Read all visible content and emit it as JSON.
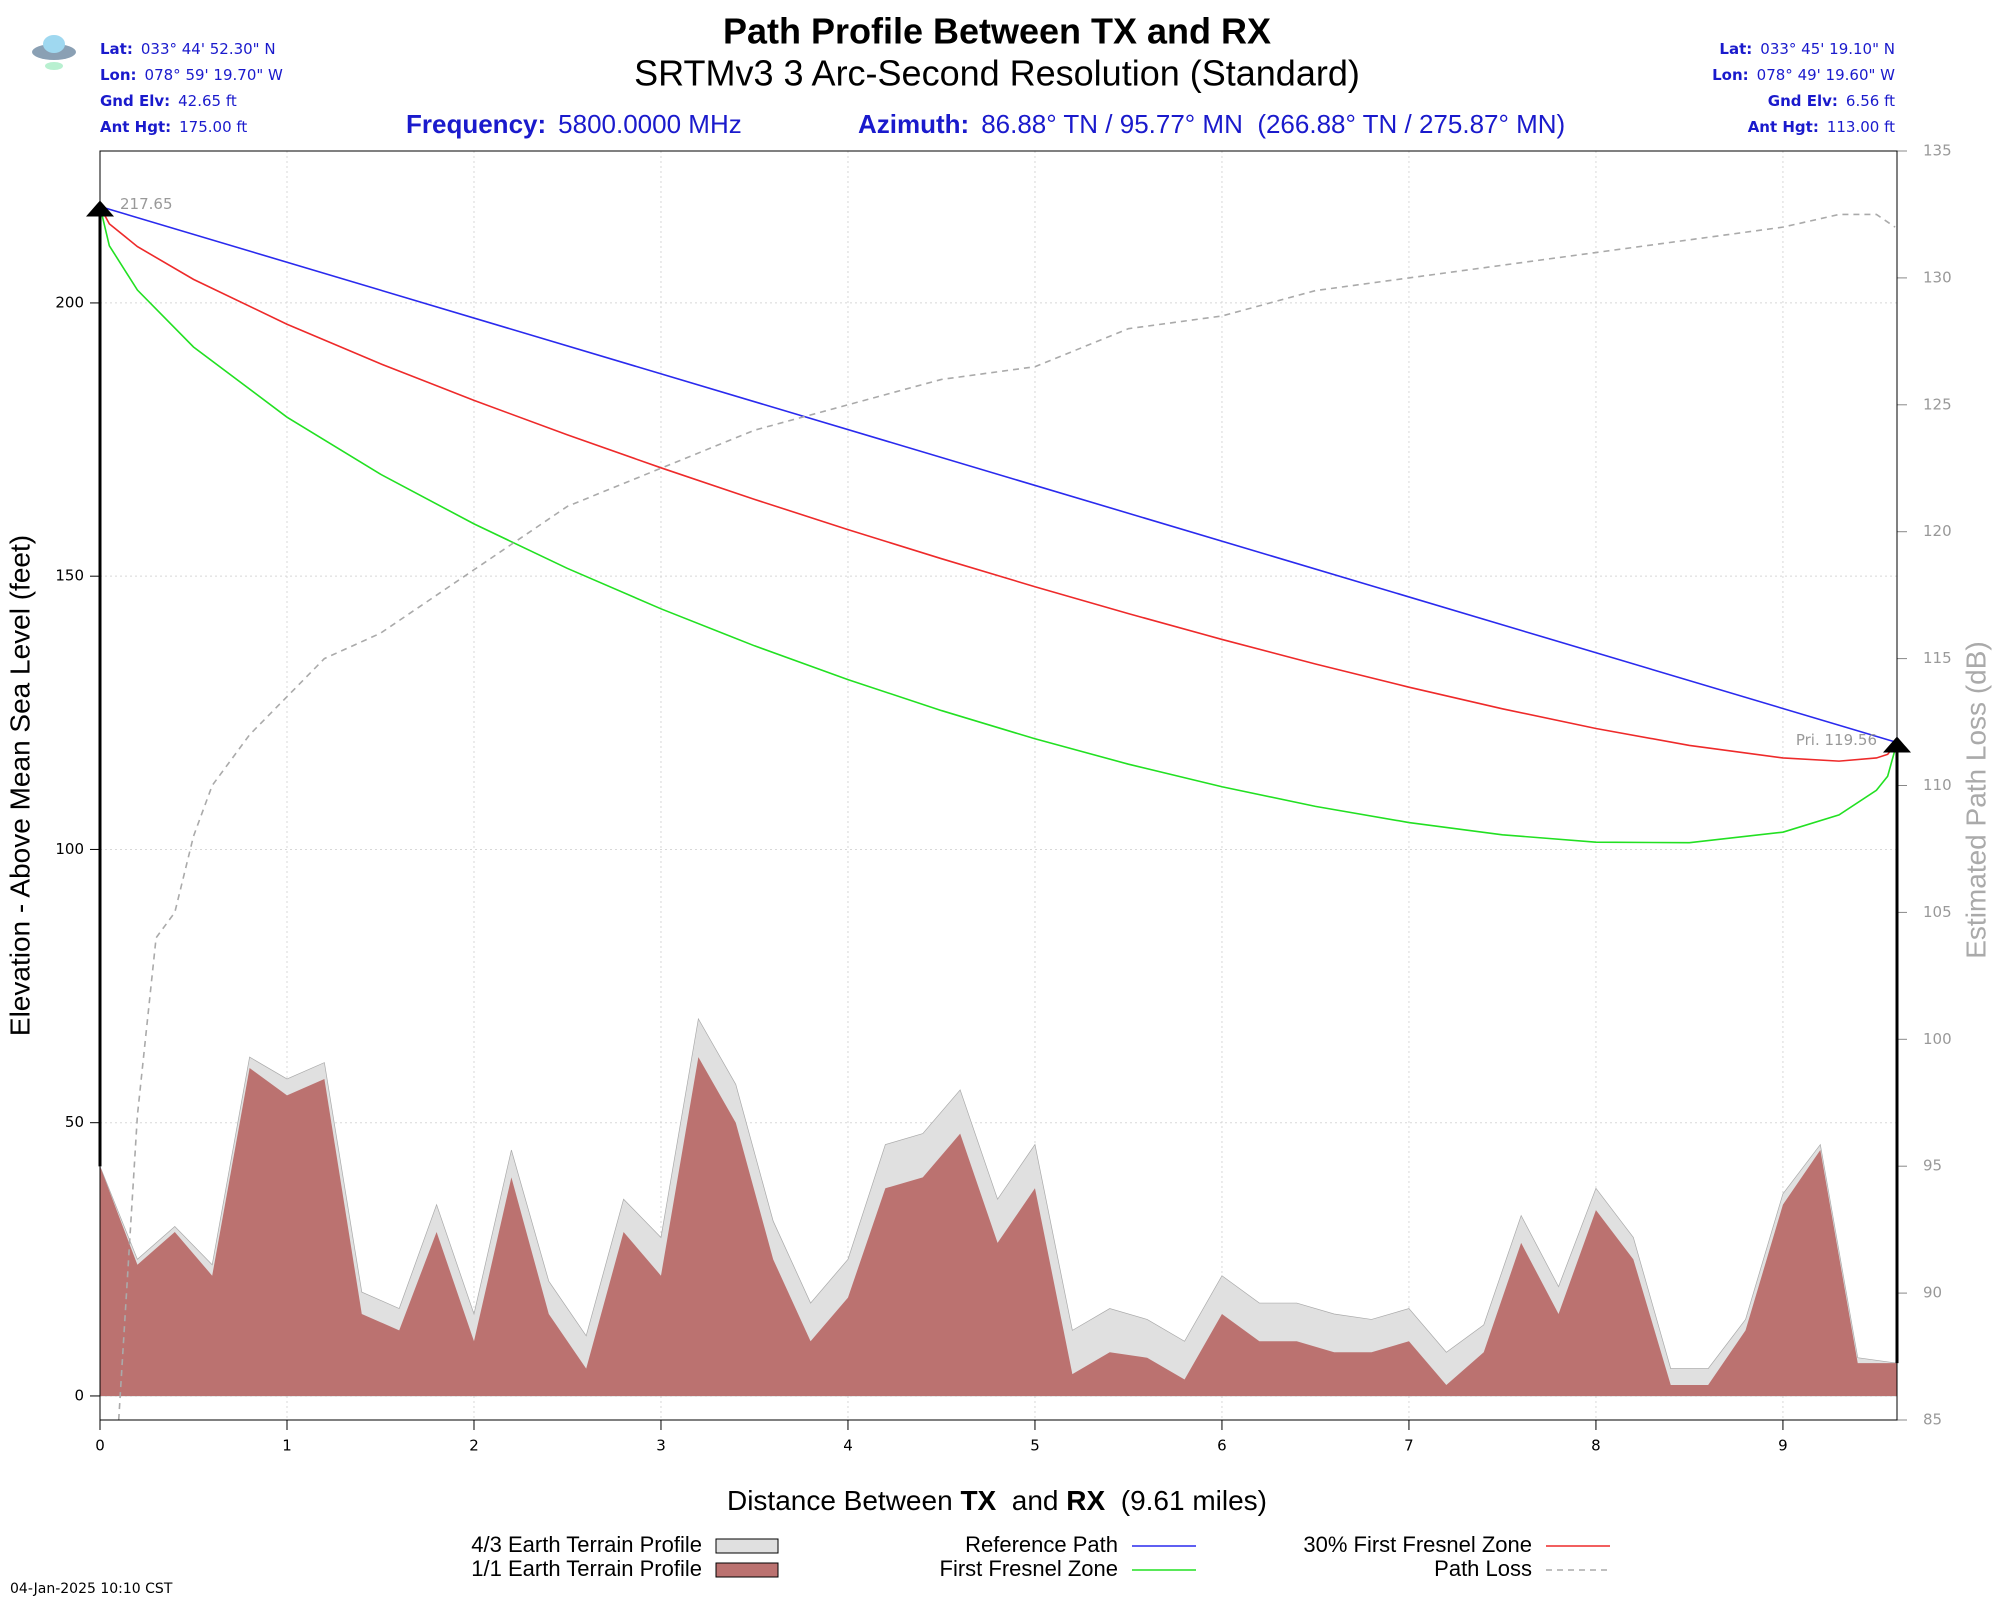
{
  "chart_data": {
    "type": "line",
    "title": "Path Profile Between TX and RX",
    "subtitle": "SRTMv3 3 Arc-Second Resolution (Standard)",
    "tx": [
      {
        "label": "Lat:",
        "value": "033° 44' 52.30\" N"
      },
      {
        "label": "Lon:",
        "value": "078° 59' 19.70\" W"
      },
      {
        "label": "Gnd Elv:",
        "value": "42.65 ft"
      },
      {
        "label": "Ant Hgt:",
        "value": "175.00 ft"
      }
    ],
    "rx": [
      {
        "label": "Lat:",
        "value": "033° 45' 19.10\" N"
      },
      {
        "label": "Lon:",
        "value": "078° 49' 19.60\" W"
      },
      {
        "label": "Gnd Elv:",
        "value": "6.56 ft"
      },
      {
        "label": "Ant Hgt:",
        "value": "113.00 ft"
      }
    ],
    "frequency": {
      "label": "Frequency:",
      "value": "5800.0000 MHz"
    },
    "azimuth": {
      "label": "Azimuth:",
      "value": "86.88° TN / 95.77° MN  (266.88° TN / 275.87° MN)"
    },
    "xlabel": [
      "Distance Between ",
      "TX",
      "  and ",
      "RX",
      "  (9.61 miles)"
    ],
    "ylabel": "Elevation - Above Mean Sea Level (feet)",
    "y2label": "Estimated Path Loss (dB)",
    "timestamp": "04-Jan-2025 10:10 CST",
    "xlim": [
      0,
      9.61
    ],
    "xticks": [
      0,
      1,
      2,
      3,
      4,
      5,
      6,
      7,
      8,
      9
    ],
    "ylim": [
      -4.4,
      227.8
    ],
    "yticks": [
      0,
      50,
      100,
      150,
      200
    ],
    "y2lim": [
      85,
      135
    ],
    "y2ticks": [
      85,
      90,
      95,
      100,
      105,
      110,
      115,
      120,
      125,
      130,
      135
    ],
    "grid": true,
    "x": [
      0,
      0.2,
      0.4,
      0.6,
      0.8,
      1.0,
      1.2,
      1.4,
      1.6,
      1.8,
      2.0,
      2.2,
      2.4,
      2.6,
      2.8,
      3.0,
      3.2,
      3.4,
      3.6,
      3.8,
      4.0,
      4.2,
      4.4,
      4.6,
      4.8,
      5.0,
      5.2,
      5.4,
      5.6,
      5.8,
      6.0,
      6.2,
      6.4,
      6.6,
      6.8,
      7.0,
      7.2,
      7.4,
      7.6,
      7.8,
      8.0,
      8.2,
      8.4,
      8.6,
      8.8,
      9.0,
      9.2,
      9.4,
      9.61
    ],
    "series": [
      {
        "name": "4/3 Earth Terrain Profile",
        "type": "area",
        "color": "#e0e0e0",
        "values": [
          42,
          25,
          31,
          24,
          62,
          58,
          61,
          19,
          16,
          35,
          15,
          45,
          21,
          11,
          36,
          29,
          69,
          57,
          32,
          17,
          25,
          46,
          48,
          56,
          36,
          46,
          12,
          16,
          14,
          10,
          22,
          17,
          17,
          15,
          14,
          16,
          8,
          13,
          33,
          20,
          38,
          29,
          5,
          5,
          14,
          37,
          46,
          7,
          6
        ]
      },
      {
        "name": "1/1 Earth Terrain Profile",
        "type": "area",
        "color": "#bb7270",
        "values": [
          42,
          24,
          30,
          22,
          60,
          55,
          58,
          15,
          12,
          30,
          10,
          40,
          15,
          5,
          30,
          22,
          62,
          50,
          25,
          10,
          18,
          38,
          40,
          48,
          28,
          38,
          4,
          8,
          7,
          3,
          15,
          10,
          10,
          8,
          8,
          10,
          2,
          8,
          28,
          15,
          34,
          25,
          2,
          2,
          12,
          35,
          45,
          6,
          6
        ]
      },
      {
        "name": "Reference Path",
        "type": "line",
        "color": "#2a2aee",
        "x": [
          0,
          9.61
        ],
        "values": [
          217.65,
          119.56
        ]
      },
      {
        "name": "First Fresnel Zone",
        "type": "line",
        "color": "#22e022",
        "x": [
          0,
          0.05,
          0.2,
          0.5,
          1,
          1.5,
          2,
          2.5,
          3,
          3.5,
          4,
          4.5,
          5,
          5.5,
          6,
          6.5,
          7,
          7.5,
          8,
          8.5,
          9,
          9.3,
          9.5,
          9.56,
          9.61
        ],
        "values": [
          217.65,
          210.46,
          202.36,
          191.94,
          179.1,
          168.66,
          159.57,
          151.42,
          144.03,
          137.26,
          131.07,
          125.41,
          120.25,
          115.6,
          111.47,
          107.88,
          104.92,
          102.68,
          101.33,
          101.23,
          103.16,
          106.32,
          110.82,
          113.39,
          119.56
        ]
      },
      {
        "name": "30% First Fresnel Zone",
        "type": "line",
        "color": "#ee2a2a",
        "x": [
          0,
          0.05,
          0.2,
          0.5,
          1,
          1.5,
          2,
          2.5,
          3,
          3.5,
          4,
          4.5,
          5,
          5.5,
          6,
          6.5,
          7,
          7.5,
          8,
          8.5,
          9,
          9.3,
          9.5,
          9.56,
          9.61
        ],
        "values": [
          217.65,
          214.47,
          210.31,
          204.31,
          196.1,
          188.87,
          182.17,
          175.85,
          169.83,
          164.06,
          158.52,
          153.2,
          148.07,
          143.15,
          138.43,
          133.93,
          129.69,
          125.73,
          122.13,
          119.03,
          116.74,
          116.16,
          116.74,
          117.4,
          119.56
        ]
      },
      {
        "name": "Path Loss",
        "type": "line",
        "color": "#aaaaaa",
        "dash": true,
        "axis": "y2",
        "x": [
          0.1,
          0.2,
          0.3,
          0.4,
          0.5,
          0.6,
          0.8,
          1.0,
          1.2,
          1.5,
          2.0,
          2.5,
          3.0,
          3.5,
          4.0,
          4.5,
          5.0,
          5.5,
          6.0,
          6.5,
          7.0,
          7.5,
          8.0,
          8.5,
          9.0,
          9.3,
          9.5,
          9.6
        ],
        "values": [
          85,
          97,
          104,
          105,
          108,
          110,
          112,
          113.5,
          115,
          116,
          118.5,
          121,
          122.5,
          124,
          125,
          126,
          126.5,
          128,
          128.5,
          129.5,
          130,
          130.5,
          131,
          131.5,
          132,
          132.5,
          132.5,
          132
        ]
      }
    ],
    "annotations": [
      {
        "x": 0,
        "y": 217.65,
        "label": "217.65"
      },
      {
        "x": 9.61,
        "y": 119.56,
        "label": "Pri. 119.56"
      }
    ]
  }
}
